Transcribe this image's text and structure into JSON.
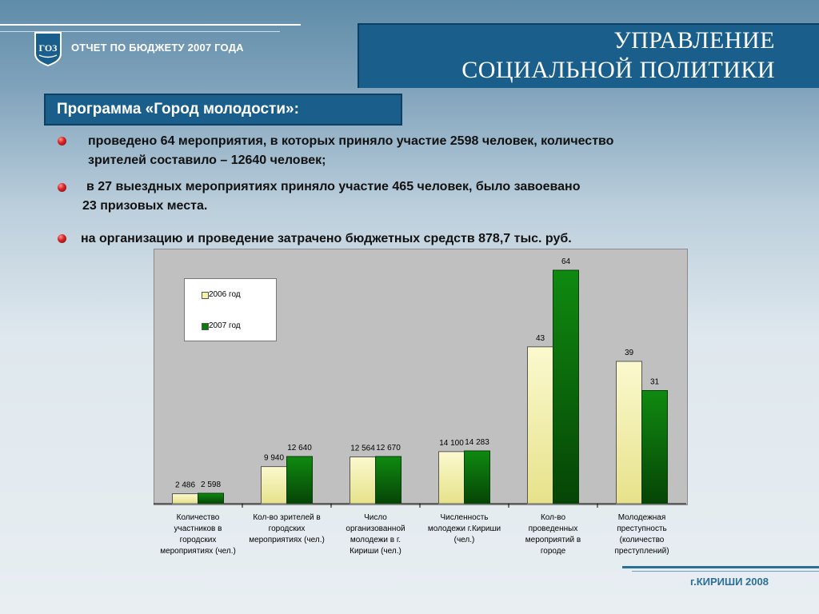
{
  "header": {
    "report_title": "ОТЧЕТ ПО БЮДЖЕТУ 2007 ГОДА",
    "logo_text": "ГОЗ",
    "department_line1": "УПРАВЛЕНИЕ",
    "department_line2": "СОЦИАЛЬНОЙ ПОЛИТИКИ"
  },
  "program": {
    "title": "Программа «Город молодости»:"
  },
  "bullets": [
    {
      "line1": "проведено 64 мероприятия, в которых приняло участие 2598 человек, количество",
      "line2": "зрителей составило – 12640 человек;"
    },
    {
      "line1": "в 27 выездных мероприятиях приняло участие 465 человек, было завоевано",
      "line2": "23 призовых места."
    },
    {
      "line1": "на организацию и проведение затрачено бюджетных средств 878,7 тыс. руб.",
      "line2": ""
    }
  ],
  "chart_data": {
    "type": "bar",
    "series": [
      {
        "name": "2006 год",
        "values": [
          2486,
          9940,
          12564,
          14100,
          43,
          39
        ],
        "labels": [
          "2 486",
          "9 940",
          "12 564",
          "14 100",
          "43",
          "39"
        ],
        "color": "#f4f1a8"
      },
      {
        "name": "2007 год",
        "values": [
          2598,
          12640,
          12670,
          14283,
          64,
          31
        ],
        "labels": [
          "2 598",
          "12 640",
          "12 670",
          "14 283",
          "64",
          "31"
        ],
        "color": "#0b7a0b"
      }
    ],
    "categories": [
      [
        "Количество",
        "участников в",
        "городских",
        "мероприятиях (чел.)"
      ],
      [
        "Кол-во зрителей в",
        "городских",
        "мероприятиях (чел.)"
      ],
      [
        "Число",
        "организованной",
        "молодежи в г.",
        "Кириши (чел.)"
      ],
      [
        "Численность",
        "молодежи г.Кириши",
        "(чел.)"
      ],
      [
        "Кол-во",
        "проведенных",
        "мероприятий в",
        "городе"
      ],
      [
        "Молодежная",
        "преступность",
        "(количество",
        "преступлений)"
      ]
    ],
    "legend": "top-left",
    "grid": false
  },
  "footer": {
    "text": "г.КИРИШИ 2008"
  }
}
